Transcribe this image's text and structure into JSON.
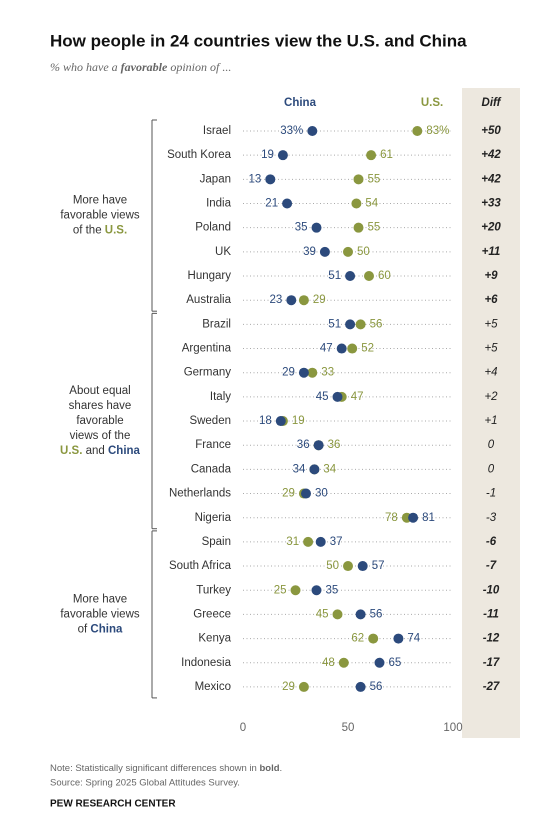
{
  "chart_data": {
    "type": "dot",
    "title": "How people in 24 countries view the U.S. and China",
    "subtitle": [
      {
        "text": "% who have a "
      },
      {
        "text": "favorable",
        "bold": true
      },
      {
        "text": " opinion of ..."
      }
    ],
    "diff_header": "Diff",
    "groups": [
      {
        "label": [
          [
            {
              "text": "More have"
            }
          ],
          [
            {
              "text": "favorable views"
            }
          ],
          [
            {
              "text": "of the "
            },
            {
              "text": "U.S.",
              "color": "#8a973f"
            }
          ]
        ],
        "categories": [
          "Israel",
          "South Korea",
          "Japan",
          "India",
          "Poland",
          "UK",
          "Hungary",
          "Australia"
        ]
      },
      {
        "label": [
          [
            {
              "text": "About equal"
            }
          ],
          [
            {
              "text": "shares have"
            }
          ],
          [
            {
              "text": "favorable"
            }
          ],
          [
            {
              "text": "views of the"
            }
          ],
          [
            {
              "text": "U.S.",
              "color": "#8a973f"
            },
            {
              "text": " and "
            },
            {
              "text": "China",
              "color": "#2c4a7c"
            }
          ]
        ],
        "categories": [
          "Brazil",
          "Argentina",
          "Germany",
          "Italy",
          "Sweden",
          "France",
          "Canada",
          "Netherlands",
          "Nigeria"
        ]
      },
      {
        "label": [
          [
            {
              "text": "More have"
            }
          ],
          [
            {
              "text": "favorable views"
            }
          ],
          [
            {
              "text": "of "
            },
            {
              "text": "China",
              "color": "#2c4a7c"
            }
          ]
        ],
        "categories": [
          "Spain",
          "South Africa",
          "Turkey",
          "Greece",
          "Kenya",
          "Indonesia",
          "Mexico"
        ]
      }
    ],
    "series": [
      {
        "name": "China",
        "color": "#2c4a7c",
        "values": [
          33,
          19,
          13,
          21,
          35,
          39,
          51,
          23,
          51,
          47,
          29,
          45,
          18,
          36,
          34,
          30,
          81,
          37,
          57,
          35,
          56,
          74,
          65,
          56
        ],
        "value_labels": [
          "33%",
          "19",
          "13",
          "21",
          "35",
          "39",
          "51",
          "23",
          "51",
          "47",
          "29",
          "45",
          "18",
          "36",
          "34",
          "30",
          "81",
          "37",
          "57",
          "35",
          "56",
          "74",
          "65",
          "56"
        ]
      },
      {
        "name": "U.S.",
        "color": "#8a973f",
        "values": [
          83,
          61,
          55,
          54,
          55,
          50,
          60,
          29,
          56,
          52,
          33,
          47,
          19,
          36,
          34,
          29,
          78,
          31,
          50,
          25,
          45,
          62,
          48,
          29
        ],
        "value_labels": [
          "83%",
          "61",
          "55",
          "54",
          "55",
          "50",
          "60",
          "29",
          "56",
          "52",
          "33",
          "47",
          "19",
          "36",
          "34",
          "29",
          "78",
          "31",
          "50",
          "25",
          "45",
          "62",
          "48",
          "29"
        ]
      }
    ],
    "diff": [
      "+50",
      "+42",
      "+42",
      "+33",
      "+20",
      "+11",
      "+9",
      "+6",
      "+5",
      "+5",
      "+4",
      "+2",
      "+1",
      "0",
      "0",
      "-1",
      "-3",
      "-6",
      "-7",
      "-10",
      "-11",
      "-12",
      "-17",
      "-27"
    ],
    "diff_bold": [
      true,
      true,
      true,
      true,
      true,
      true,
      true,
      true,
      false,
      false,
      false,
      false,
      false,
      false,
      false,
      false,
      false,
      true,
      true,
      true,
      true,
      true,
      true,
      true
    ],
    "xlim": [
      0,
      100
    ],
    "xticks": [
      0,
      50,
      100
    ],
    "note": [
      {
        "text": "Note: Statistically significant differences shown in "
      },
      {
        "text": "bold",
        "bold": true
      },
      {
        "text": "."
      }
    ],
    "source": "Source: Spring 2025 Global Attitudes Survey.",
    "credit": "PEW RESEARCH CENTER"
  }
}
